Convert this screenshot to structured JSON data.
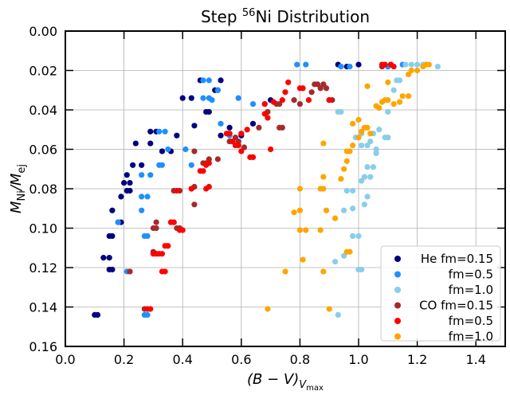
{
  "chart_data": {
    "type": "scatter",
    "title": "Step 56Ni Distribution",
    "title_parts": {
      "prefix": "Step ",
      "sup": "56",
      "suffix": "Ni Distribution"
    },
    "xlabel": "(B - V)_Vmax",
    "xlabel_parts": {
      "main": "(B − V)",
      "sub": "V",
      "subsub": "max"
    },
    "ylabel": "M_Ni/M_ej",
    "ylabel_parts": {
      "num": "M",
      "num_sub": "Ni",
      "den": "/M",
      "den_sub": "ej"
    },
    "xlim": [
      0.0,
      1.5
    ],
    "ylim": [
      0.16,
      0.0
    ],
    "y_inverted": true,
    "xticks": [
      "0.0",
      "0.2",
      "0.4",
      "0.6",
      "0.8",
      "1.0",
      "1.2",
      "1.4"
    ],
    "xtick_values": [
      0.0,
      0.2,
      0.4,
      0.6,
      0.8,
      1.0,
      1.2,
      1.4
    ],
    "yticks": [
      "0.00",
      "0.02",
      "0.04",
      "0.06",
      "0.08",
      "0.10",
      "0.12",
      "0.14",
      "0.16"
    ],
    "ytick_values": [
      0.0,
      0.02,
      0.04,
      0.06,
      0.08,
      0.1,
      0.12,
      0.14,
      0.16
    ],
    "grid": true,
    "legend_position": "lower-right",
    "series": [
      {
        "name": "He fm=0.15",
        "color": "#000080",
        "points": [
          [
            0.1,
            0.144
          ],
          [
            0.11,
            0.144
          ],
          [
            0.13,
            0.115
          ],
          [
            0.15,
            0.115
          ],
          [
            0.15,
            0.121
          ],
          [
            0.16,
            0.121
          ],
          [
            0.15,
            0.104
          ],
          [
            0.16,
            0.104
          ],
          [
            0.16,
            0.091
          ],
          [
            0.18,
            0.097
          ],
          [
            0.19,
            0.097
          ],
          [
            0.19,
            0.084
          ],
          [
            0.21,
            0.081
          ],
          [
            0.22,
            0.081
          ],
          [
            0.2,
            0.077
          ],
          [
            0.22,
            0.077
          ],
          [
            0.21,
            0.073
          ],
          [
            0.23,
            0.068
          ],
          [
            0.26,
            0.068
          ],
          [
            0.24,
            0.057
          ],
          [
            0.29,
            0.057
          ],
          [
            0.29,
            0.051
          ],
          [
            0.31,
            0.051
          ],
          [
            0.33,
            0.061
          ],
          [
            0.36,
            0.061
          ],
          [
            0.38,
            0.053
          ],
          [
            0.4,
            0.034
          ],
          [
            0.43,
            0.034
          ],
          [
            0.44,
            0.048
          ],
          [
            0.46,
            0.025
          ],
          [
            0.48,
            0.041
          ],
          [
            0.49,
            0.041
          ],
          [
            0.51,
            0.03
          ],
          [
            0.52,
            0.03
          ],
          [
            0.53,
            0.025
          ],
          [
            0.53,
            0.053
          ],
          [
            0.56,
            0.049
          ],
          [
            0.6,
            0.053
          ],
          [
            0.64,
            0.047
          ],
          [
            0.68,
            0.037
          ],
          [
            0.7,
            0.035
          ],
          [
            0.93,
            0.017
          ],
          [
            0.96,
            0.018
          ],
          [
            1.0,
            0.017
          ],
          [
            1.1,
            0.018
          ],
          [
            1.11,
            0.017
          ]
        ]
      },
      {
        "name": "fm=0.5",
        "color": "#1e90ff",
        "points": [
          [
            0.27,
            0.144
          ],
          [
            0.28,
            0.144
          ],
          [
            0.21,
            0.122
          ],
          [
            0.22,
            0.122
          ],
          [
            0.27,
            0.104
          ],
          [
            0.28,
            0.104
          ],
          [
            0.26,
            0.091
          ],
          [
            0.18,
            0.097
          ],
          [
            0.26,
            0.084
          ],
          [
            0.28,
            0.084
          ],
          [
            0.26,
            0.073
          ],
          [
            0.29,
            0.073
          ],
          [
            0.32,
            0.068
          ],
          [
            0.33,
            0.068
          ],
          [
            0.32,
            0.051
          ],
          [
            0.34,
            0.051
          ],
          [
            0.35,
            0.06
          ],
          [
            0.41,
            0.06
          ],
          [
            0.43,
            0.068
          ],
          [
            0.47,
            0.025
          ],
          [
            0.49,
            0.025
          ],
          [
            0.47,
            0.034
          ],
          [
            0.49,
            0.034
          ],
          [
            0.5,
            0.035
          ],
          [
            0.52,
            0.03
          ],
          [
            0.53,
            0.047
          ],
          [
            0.56,
            0.053
          ],
          [
            0.59,
            0.034
          ],
          [
            0.64,
            0.037
          ],
          [
            0.79,
            0.017
          ],
          [
            0.82,
            0.017
          ],
          [
            0.94,
            0.018
          ],
          [
            0.97,
            0.018
          ],
          [
            1.1,
            0.018
          ],
          [
            1.15,
            0.017
          ]
        ]
      },
      {
        "name": "fm=1.0",
        "color": "#87ceeb",
        "points": [
          [
            0.93,
            0.144
          ],
          [
            0.92,
            0.117
          ],
          [
            0.95,
            0.114
          ],
          [
            1.0,
            0.121
          ],
          [
            1.01,
            0.121
          ],
          [
            0.98,
            0.104
          ],
          [
            1.0,
            0.104
          ],
          [
            0.95,
            0.091
          ],
          [
            0.98,
            0.09
          ],
          [
            1.02,
            0.088
          ],
          [
            0.96,
            0.081
          ],
          [
            0.98,
            0.081
          ],
          [
            1.03,
            0.084
          ],
          [
            1.01,
            0.076
          ],
          [
            1.02,
            0.074
          ],
          [
            1.04,
            0.074
          ],
          [
            1.03,
            0.069
          ],
          [
            1.05,
            0.069
          ],
          [
            1.06,
            0.062
          ],
          [
            1.01,
            0.058
          ],
          [
            1.03,
            0.058
          ],
          [
            1.04,
            0.056
          ],
          [
            1.06,
            0.06
          ],
          [
            0.99,
            0.054
          ],
          [
            1.01,
            0.052
          ],
          [
            1.05,
            0.052
          ],
          [
            1.07,
            0.05
          ],
          [
            0.93,
            0.041
          ],
          [
            0.94,
            0.041
          ],
          [
            1.09,
            0.054
          ],
          [
            1.1,
            0.054
          ],
          [
            1.1,
            0.041
          ],
          [
            1.12,
            0.03
          ],
          [
            1.13,
            0.025
          ],
          [
            1.14,
            0.025
          ],
          [
            1.16,
            0.017
          ],
          [
            1.18,
            0.017
          ],
          [
            1.2,
            0.017
          ],
          [
            1.22,
            0.017
          ],
          [
            1.27,
            0.018
          ]
        ]
      },
      {
        "name": "CO fm=0.15",
        "color": "#a52a2a",
        "points": [
          [
            0.27,
            0.141
          ],
          [
            0.22,
            0.122
          ],
          [
            0.3,
            0.112
          ],
          [
            0.3,
            0.1
          ],
          [
            0.31,
            0.1
          ],
          [
            0.31,
            0.097
          ],
          [
            0.36,
            0.097
          ],
          [
            0.37,
            0.097
          ],
          [
            0.38,
            0.1
          ],
          [
            0.39,
            0.1
          ],
          [
            0.37,
            0.081
          ],
          [
            0.39,
            0.081
          ],
          [
            0.43,
            0.08
          ],
          [
            0.44,
            0.079
          ],
          [
            0.44,
            0.088
          ],
          [
            0.44,
            0.061
          ],
          [
            0.47,
            0.067
          ],
          [
            0.48,
            0.067
          ],
          [
            0.49,
            0.065
          ],
          [
            0.52,
            0.065
          ],
          [
            0.56,
            0.056
          ],
          [
            0.57,
            0.056
          ],
          [
            0.58,
            0.054
          ],
          [
            0.59,
            0.056
          ],
          [
            0.61,
            0.059
          ],
          [
            0.66,
            0.049
          ],
          [
            0.69,
            0.041
          ],
          [
            0.72,
            0.037
          ],
          [
            0.73,
            0.037
          ],
          [
            0.73,
            0.049
          ],
          [
            0.74,
            0.049
          ],
          [
            0.78,
            0.035
          ],
          [
            0.8,
            0.037
          ],
          [
            0.84,
            0.031
          ],
          [
            0.85,
            0.027
          ],
          [
            0.86,
            0.027
          ],
          [
            0.87,
            0.029
          ],
          [
            0.88,
            0.027
          ],
          [
            0.89,
            0.029
          ],
          [
            0.9,
            0.035
          ],
          [
            0.91,
            0.035
          ],
          [
            1.08,
            0.018
          ]
        ]
      },
      {
        "name": "fm=0.5",
        "color": "#ff0000",
        "points": [
          [
            0.28,
            0.141
          ],
          [
            0.29,
            0.141
          ],
          [
            0.3,
            0.113
          ],
          [
            0.31,
            0.113
          ],
          [
            0.32,
            0.113
          ],
          [
            0.33,
            0.113
          ],
          [
            0.33,
            0.122
          ],
          [
            0.34,
            0.122
          ],
          [
            0.34,
            0.109
          ],
          [
            0.35,
            0.109
          ],
          [
            0.36,
            0.097
          ],
          [
            0.37,
            0.097
          ],
          [
            0.39,
            0.101
          ],
          [
            0.4,
            0.101
          ],
          [
            0.38,
            0.081
          ],
          [
            0.43,
            0.08
          ],
          [
            0.48,
            0.08
          ],
          [
            0.49,
            0.079
          ],
          [
            0.46,
            0.071
          ],
          [
            0.47,
            0.071
          ],
          [
            0.49,
            0.067
          ],
          [
            0.48,
            0.068
          ],
          [
            0.55,
            0.052
          ],
          [
            0.56,
            0.052
          ],
          [
            0.57,
            0.056
          ],
          [
            0.58,
            0.058
          ],
          [
            0.59,
            0.058
          ],
          [
            0.6,
            0.061
          ],
          [
            0.6,
            0.052
          ],
          [
            0.62,
            0.05
          ],
          [
            0.63,
            0.064
          ],
          [
            0.64,
            0.064
          ],
          [
            0.68,
            0.042
          ],
          [
            0.68,
            0.037
          ],
          [
            0.69,
            0.044
          ],
          [
            0.7,
            0.06
          ],
          [
            0.71,
            0.036
          ],
          [
            0.74,
            0.035
          ],
          [
            0.75,
            0.031
          ],
          [
            0.76,
            0.026
          ],
          [
            0.8,
            0.029
          ],
          [
            0.81,
            0.029
          ],
          [
            0.83,
            0.035
          ],
          [
            0.9,
            0.035
          ],
          [
            1.08,
            0.017
          ],
          [
            1.09,
            0.017
          ],
          [
            1.11,
            0.017
          ],
          [
            1.12,
            0.018
          ]
        ]
      },
      {
        "name": "fm=1.0",
        "color": "#ffa500",
        "points": [
          [
            0.69,
            0.141
          ],
          [
            0.9,
            0.141
          ],
          [
            0.75,
            0.122
          ],
          [
            0.88,
            0.122
          ],
          [
            0.81,
            0.116
          ],
          [
            0.96,
            0.112
          ],
          [
            0.97,
            0.112
          ],
          [
            0.8,
            0.101
          ],
          [
            0.82,
            0.101
          ],
          [
            0.87,
            0.101
          ],
          [
            0.78,
            0.092
          ],
          [
            0.8,
            0.091
          ],
          [
            0.89,
            0.091
          ],
          [
            0.92,
            0.095
          ],
          [
            0.8,
            0.08
          ],
          [
            0.87,
            0.08
          ],
          [
            0.88,
            0.08
          ],
          [
            0.88,
            0.074
          ],
          [
            0.94,
            0.075
          ],
          [
            0.95,
            0.07
          ],
          [
            0.96,
            0.066
          ],
          [
            0.96,
            0.061
          ],
          [
            0.97,
            0.061
          ],
          [
            0.98,
            0.058
          ],
          [
            1.0,
            0.054
          ],
          [
            1.01,
            0.051
          ],
          [
            1.02,
            0.049
          ],
          [
            1.03,
            0.049
          ],
          [
            1.04,
            0.052
          ],
          [
            0.88,
            0.057
          ],
          [
            0.98,
            0.047
          ],
          [
            1.0,
            0.045
          ],
          [
            1.03,
            0.028
          ],
          [
            1.06,
            0.038
          ],
          [
            1.07,
            0.039
          ],
          [
            1.08,
            0.036
          ],
          [
            1.09,
            0.035
          ],
          [
            1.1,
            0.035
          ],
          [
            1.1,
            0.026
          ],
          [
            1.12,
            0.037
          ],
          [
            1.14,
            0.036
          ],
          [
            1.15,
            0.033
          ],
          [
            1.17,
            0.033
          ],
          [
            1.17,
            0.022
          ],
          [
            1.18,
            0.02
          ],
          [
            1.2,
            0.02
          ],
          [
            1.22,
            0.018
          ],
          [
            1.23,
            0.017
          ],
          [
            1.24,
            0.017
          ]
        ]
      }
    ]
  }
}
